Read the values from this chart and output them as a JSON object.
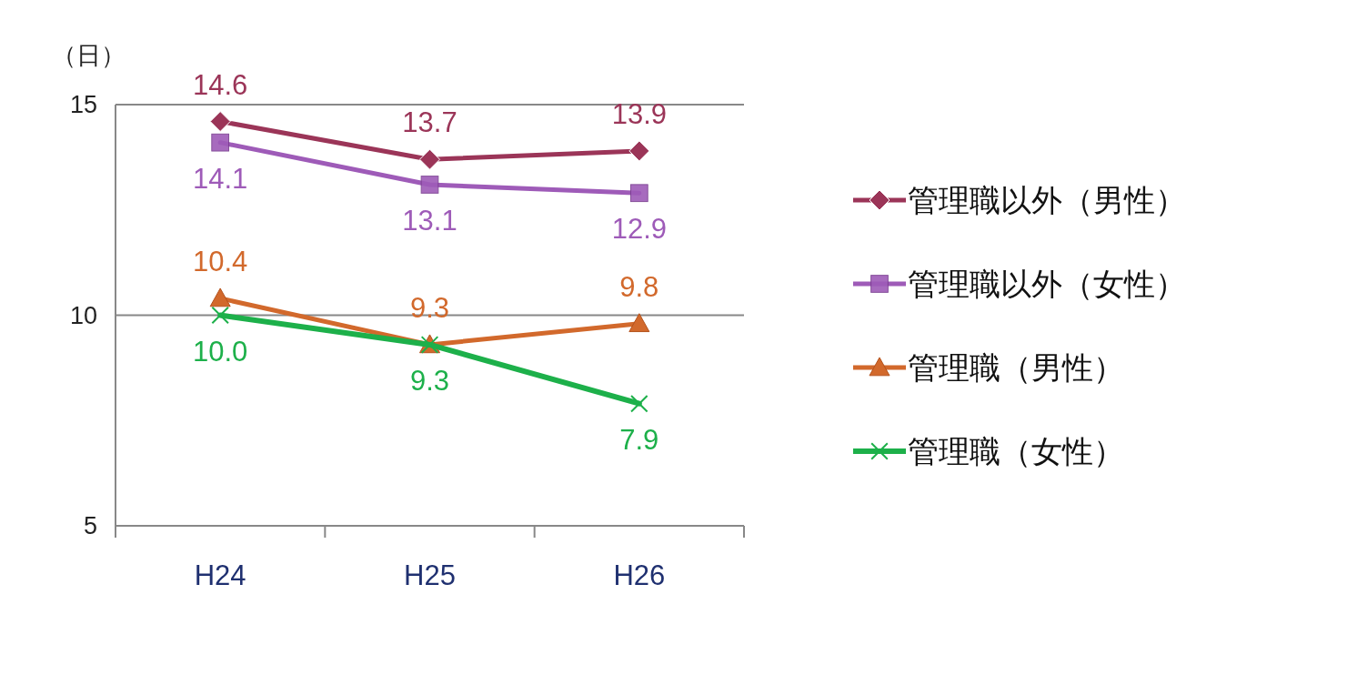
{
  "chart_data": {
    "type": "line",
    "ylabel": "（日）",
    "categories": [
      "H24",
      "H25",
      "H26"
    ],
    "ylim": [
      5,
      15
    ],
    "yticks": [
      5,
      10,
      15
    ],
    "grid": "y",
    "legend": "right",
    "series": [
      {
        "name": "管理職以外（男性）",
        "color": "#9b3558",
        "marker": "diamond",
        "values": [
          14.6,
          13.7,
          13.9
        ],
        "value_labels": [
          "14.6",
          "13.7",
          "13.9"
        ]
      },
      {
        "name": "管理職以外（女性）",
        "color": "#9e5bb8",
        "marker": "square",
        "values": [
          14.1,
          13.1,
          12.9
        ],
        "value_labels": [
          "14.1",
          "13.1",
          "12.9"
        ]
      },
      {
        "name": "管理職（男性）",
        "color": "#d2692c",
        "marker": "triangle",
        "values": [
          10.4,
          9.3,
          9.8
        ],
        "value_labels": [
          "10.4",
          "9.3",
          "9.8"
        ]
      },
      {
        "name": "管理職（女性）",
        "color": "#1db04a",
        "marker": "cross",
        "values": [
          10,
          9.3,
          7.9
        ],
        "value_labels": [
          "10.0",
          "9.3",
          "7.9"
        ]
      }
    ]
  }
}
